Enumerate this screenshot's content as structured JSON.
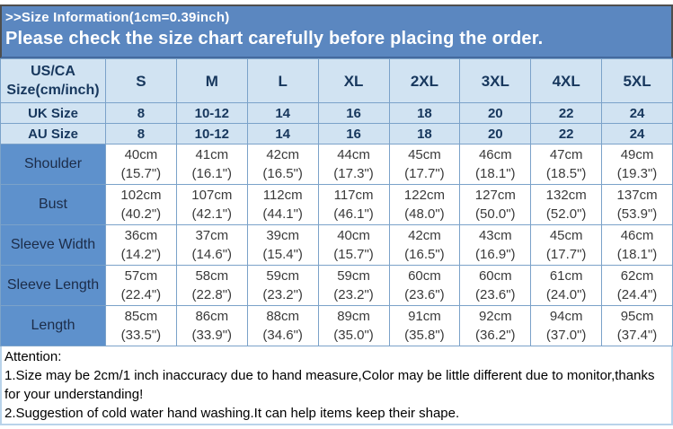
{
  "banner": {
    "line1": ">>Size Information(1cm=0.39inch)",
    "line2": "Please check the size chart carefully before placing the order."
  },
  "table": {
    "corner_line1": "US/CA",
    "corner_line2": "Size(cm/inch)",
    "sizes": [
      "S",
      "M",
      "L",
      "XL",
      "2XL",
      "3XL",
      "4XL",
      "5XL"
    ],
    "size_rows": [
      {
        "label": "UK Size",
        "values": [
          "8",
          "10-12",
          "14",
          "16",
          "18",
          "20",
          "22",
          "24"
        ]
      },
      {
        "label": "AU Size",
        "values": [
          "8",
          "10-12",
          "14",
          "16",
          "18",
          "20",
          "22",
          "24"
        ]
      }
    ],
    "measure_rows": [
      {
        "label": "Shoulder",
        "cells": [
          {
            "cm": "40cm",
            "in": "(15.7\")"
          },
          {
            "cm": "41cm",
            "in": "(16.1\")"
          },
          {
            "cm": "42cm",
            "in": "(16.5\")"
          },
          {
            "cm": "44cm",
            "in": "(17.3\")"
          },
          {
            "cm": "45cm",
            "in": "(17.7\")"
          },
          {
            "cm": "46cm",
            "in": "(18.1\")"
          },
          {
            "cm": "47cm",
            "in": "(18.5\")"
          },
          {
            "cm": "49cm",
            "in": "(19.3\")"
          }
        ]
      },
      {
        "label": "Bust",
        "cells": [
          {
            "cm": "102cm",
            "in": "(40.2\")"
          },
          {
            "cm": "107cm",
            "in": "(42.1\")"
          },
          {
            "cm": "112cm",
            "in": "(44.1\")"
          },
          {
            "cm": "117cm",
            "in": "(46.1\")"
          },
          {
            "cm": "122cm",
            "in": "(48.0\")"
          },
          {
            "cm": "127cm",
            "in": "(50.0\")"
          },
          {
            "cm": "132cm",
            "in": "(52.0\")"
          },
          {
            "cm": "137cm",
            "in": "(53.9\")"
          }
        ]
      },
      {
        "label": "Sleeve Width",
        "cells": [
          {
            "cm": "36cm",
            "in": "(14.2\")"
          },
          {
            "cm": "37cm",
            "in": "(14.6\")"
          },
          {
            "cm": "39cm",
            "in": "(15.4\")"
          },
          {
            "cm": "40cm",
            "in": "(15.7\")"
          },
          {
            "cm": "42cm",
            "in": "(16.5\")"
          },
          {
            "cm": "43cm",
            "in": "(16.9\")"
          },
          {
            "cm": "45cm",
            "in": "(17.7\")"
          },
          {
            "cm": "46cm",
            "in": "(18.1\")"
          }
        ]
      },
      {
        "label": "Sleeve Length",
        "cells": [
          {
            "cm": "57cm",
            "in": "(22.4\")"
          },
          {
            "cm": "58cm",
            "in": "(22.8\")"
          },
          {
            "cm": "59cm",
            "in": "(23.2\")"
          },
          {
            "cm": "59cm",
            "in": "(23.2\")"
          },
          {
            "cm": "60cm",
            "in": "(23.6\")"
          },
          {
            "cm": "60cm",
            "in": "(23.6\")"
          },
          {
            "cm": "61cm",
            "in": "(24.0\")"
          },
          {
            "cm": "62cm",
            "in": "(24.4\")"
          }
        ]
      },
      {
        "label": "Length",
        "cells": [
          {
            "cm": "85cm",
            "in": "(33.5\")"
          },
          {
            "cm": "86cm",
            "in": "(33.9\")"
          },
          {
            "cm": "88cm",
            "in": "(34.6\")"
          },
          {
            "cm": "89cm",
            "in": "(35.0\")"
          },
          {
            "cm": "91cm",
            "in": "(35.8\")"
          },
          {
            "cm": "92cm",
            "in": "(36.2\")"
          },
          {
            "cm": "94cm",
            "in": "(37.0\")"
          },
          {
            "cm": "95cm",
            "in": "(37.4\")"
          }
        ]
      }
    ]
  },
  "attention": {
    "title": "Attention:",
    "notes": [
      "1.Size may be 2cm/1 inch inaccuracy due to hand measure,Color may be little different due to monitor,thanks for your understanding!",
      "2.Suggestion of cold water hand washing.It can help items keep their shape."
    ]
  },
  "colors": {
    "banner_bg": "#5b87c0",
    "header_cell_bg": "#d1e3f2",
    "label_cell_bg": "#5e91cc",
    "grid_border": "#7ba2c9",
    "header_text": "#17375d",
    "banner_text": "#ffffff"
  }
}
